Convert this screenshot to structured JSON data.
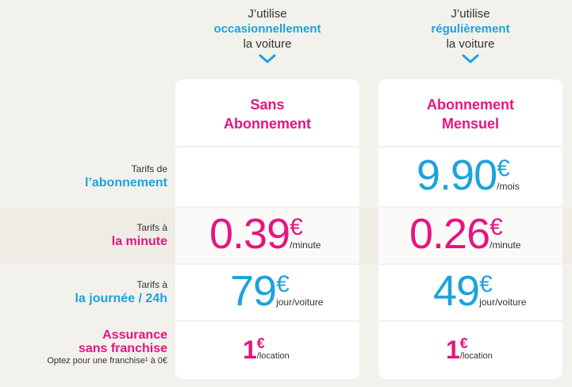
{
  "columns": [
    {
      "intro_top": "J’utilise",
      "intro_keyword": "occasionnellement",
      "intro_bottom": "la voiture",
      "title_line1": "Sans",
      "title_line2": "Abonnement"
    },
    {
      "intro_top": "J’utilise",
      "intro_keyword": "régulièrement",
      "intro_bottom": "la voiture",
      "title_line1": "Abonnement",
      "title_line2": "Mensuel"
    }
  ],
  "rows": {
    "subscription": {
      "small": "Tarifs de",
      "big": "l’abonnement"
    },
    "minute": {
      "small": "Tarifs à",
      "big": "la minute"
    },
    "day": {
      "small": "Tarifs à",
      "big": "la journée / 24h"
    },
    "insurance": {
      "line1": "Assurance",
      "line2": "sans franchise",
      "note": "Optez pour une franchise¹ à 0€"
    }
  },
  "prices": {
    "monthly_subscription": {
      "value": "9.90",
      "currency": "€",
      "unit": "/mois"
    },
    "free_minute": {
      "value": "0.39",
      "currency": "€",
      "unit": "/minute"
    },
    "monthly_minute": {
      "value": "0.26",
      "currency": "€",
      "unit": "/minute"
    },
    "free_day": {
      "value": "79",
      "currency": "€",
      "unit": "jour/voiture"
    },
    "monthly_day": {
      "value": "49",
      "currency": "€",
      "unit": "jour/voiture"
    },
    "free_insurance": {
      "value": "1",
      "currency": "€",
      "unit": "/location"
    },
    "monthly_insurance": {
      "value": "1",
      "currency": "€",
      "unit": "/location"
    }
  },
  "icons": {
    "chevron": "chevron-down-icon"
  },
  "colors": {
    "blue": "#1ba3dd",
    "pink": "#e5157f",
    "background": "#f3f1ec",
    "card": "#ffffff"
  }
}
